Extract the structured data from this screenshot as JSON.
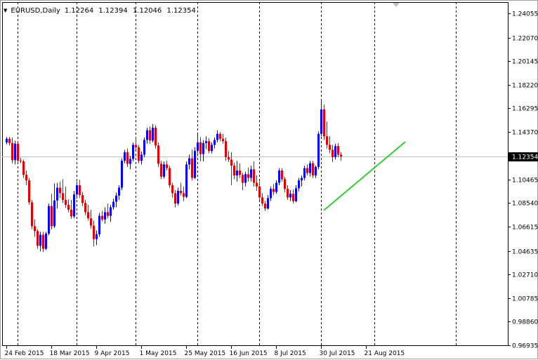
{
  "header": {
    "dropdown_icon": "triangle-down-icon",
    "symbol_timeframe": "EURUSD,Daily",
    "open": "1.12264",
    "high": "1.12394",
    "low": "1.12046",
    "close": "1.12354"
  },
  "colors": {
    "bull": "#0000ff",
    "bear": "#e00000",
    "trendline": "#33cc33",
    "grid": "#000000",
    "current_price_bg": "#000000",
    "current_price_line": "#c0c0c0"
  },
  "chart_data": {
    "type": "candlestick",
    "symbol": "EURUSD",
    "timeframe": "Daily",
    "ylim": [
      0.9692,
      1.2497
    ],
    "price_ticks": [
      "1.24055",
      "1.22070",
      "1.20145",
      "1.18220",
      "1.16295",
      "1.14370",
      "1.12354",
      "1.10465",
      "1.08540",
      "1.06615",
      "1.04635",
      "1.02710",
      "1.00785",
      "0.98860",
      "0.96935"
    ],
    "current_price": "1.12354",
    "date_ticks": [
      {
        "label": "24 Feb 2015",
        "bar": 0
      },
      {
        "label": "18 Mar 2015",
        "bar": 16
      },
      {
        "label": "9 Apr 2015",
        "bar": 32
      },
      {
        "label": "1 May 2015",
        "bar": 48
      },
      {
        "label": "25 May 2015",
        "bar": 64
      },
      {
        "label": "16 Jun 2015",
        "bar": 80
      },
      {
        "label": "8 Jul 2015",
        "bar": 96
      },
      {
        "label": "30 Jul 2015",
        "bar": 112
      },
      {
        "label": "21 Aug 2015",
        "bar": 128
      }
    ],
    "period_separators_bars": [
      4,
      25,
      46,
      68,
      90,
      112,
      131,
      160
    ],
    "trendline": {
      "bar1": 113,
      "price1": 1.0795,
      "bar2": 142,
      "price2": 1.1355
    },
    "candles": [
      [
        1.135,
        1.1395,
        1.1335,
        1.138
      ],
      [
        1.138,
        1.1395,
        1.1325,
        1.1345
      ],
      [
        1.1345,
        1.139,
        1.118,
        1.1205
      ],
      [
        1.1205,
        1.1365,
        1.117,
        1.134
      ],
      [
        1.134,
        1.1355,
        1.118,
        1.12
      ],
      [
        1.12,
        1.1225,
        1.118,
        1.1195
      ],
      [
        1.1195,
        1.121,
        1.106,
        1.1085
      ],
      [
        1.1085,
        1.112,
        1.1,
        1.104
      ],
      [
        1.104,
        1.106,
        1.084,
        1.086
      ],
      [
        1.086,
        1.088,
        1.064,
        1.0665
      ],
      [
        1.0665,
        1.072,
        1.058,
        1.0625
      ],
      [
        1.0625,
        1.064,
        1.048,
        1.0505
      ],
      [
        1.0505,
        1.062,
        1.046,
        1.0595
      ],
      [
        1.0595,
        1.062,
        1.0455,
        1.048
      ],
      [
        1.048,
        1.062,
        1.047,
        1.0605
      ],
      [
        1.0605,
        1.085,
        1.059,
        1.083
      ],
      [
        1.083,
        1.093,
        1.064,
        1.0665
      ],
      [
        1.0665,
        1.1015,
        1.065,
        1.0875
      ],
      [
        1.0875,
        1.102,
        1.081,
        1.098
      ],
      [
        1.098,
        1.103,
        1.0895,
        1.0935
      ],
      [
        1.0935,
        1.105,
        1.0855,
        1.088
      ],
      [
        1.088,
        1.099,
        1.0815,
        1.084
      ],
      [
        1.084,
        1.0885,
        1.078,
        1.08
      ],
      [
        1.08,
        1.088,
        1.0725,
        1.0745
      ],
      [
        1.0745,
        1.0955,
        1.073,
        1.0925
      ],
      [
        1.0925,
        1.103,
        1.089,
        1.1
      ],
      [
        1.1,
        1.1045,
        1.0895,
        1.092
      ],
      [
        1.092,
        1.0945,
        1.083,
        1.0855
      ],
      [
        1.0855,
        1.088,
        1.0755,
        1.078
      ],
      [
        1.078,
        1.084,
        1.071,
        1.073
      ],
      [
        1.073,
        1.08,
        1.0645,
        1.067
      ],
      [
        1.067,
        1.071,
        1.05,
        1.056
      ],
      [
        1.056,
        1.063,
        1.051,
        1.06
      ],
      [
        1.06,
        1.0775,
        1.058,
        1.075
      ],
      [
        1.075,
        1.079,
        1.0705,
        1.072
      ],
      [
        1.072,
        1.082,
        1.0685,
        1.078
      ],
      [
        1.078,
        1.085,
        1.073,
        1.075
      ],
      [
        1.075,
        1.084,
        1.07,
        1.082
      ],
      [
        1.082,
        1.089,
        1.08,
        1.0865
      ],
      [
        1.0865,
        1.094,
        1.082,
        1.0915
      ],
      [
        1.0915,
        1.1,
        1.088,
        1.098
      ],
      [
        1.098,
        1.122,
        1.096,
        1.12
      ],
      [
        1.12,
        1.129,
        1.118,
        1.127
      ],
      [
        1.127,
        1.13,
        1.115,
        1.1175
      ],
      [
        1.1175,
        1.124,
        1.113,
        1.1215
      ],
      [
        1.1215,
        1.135,
        1.1195,
        1.133
      ],
      [
        1.133,
        1.139,
        1.129,
        1.131
      ],
      [
        1.131,
        1.133,
        1.118,
        1.12
      ],
      [
        1.12,
        1.1275,
        1.117,
        1.125
      ],
      [
        1.125,
        1.139,
        1.123,
        1.137
      ],
      [
        1.137,
        1.147,
        1.134,
        1.145
      ],
      [
        1.145,
        1.148,
        1.134,
        1.1365
      ],
      [
        1.1365,
        1.15,
        1.135,
        1.147
      ],
      [
        1.147,
        1.149,
        1.13,
        1.1325
      ],
      [
        1.1325,
        1.135,
        1.115,
        1.1175
      ],
      [
        1.1175,
        1.12,
        1.105,
        1.107
      ],
      [
        1.107,
        1.1195,
        1.1055,
        1.117
      ],
      [
        1.117,
        1.12,
        1.112,
        1.114
      ],
      [
        1.114,
        1.116,
        1.098,
        1.1
      ],
      [
        1.1,
        1.102,
        1.09,
        1.0935
      ],
      [
        1.0935,
        1.096,
        1.082,
        1.085
      ],
      [
        1.085,
        1.098,
        1.0835,
        1.0955
      ],
      [
        1.0955,
        1.102,
        1.0915,
        1.0935
      ],
      [
        1.0935,
        1.099,
        1.087,
        1.0905
      ],
      [
        1.0905,
        1.1195,
        1.0895,
        1.117
      ],
      [
        1.117,
        1.125,
        1.113,
        1.122
      ],
      [
        1.122,
        1.129,
        1.104,
        1.106
      ],
      [
        1.106,
        1.131,
        1.105,
        1.128
      ],
      [
        1.128,
        1.142,
        1.126,
        1.135
      ],
      [
        1.135,
        1.1395,
        1.1195,
        1.1255
      ],
      [
        1.1255,
        1.137,
        1.1195,
        1.1345
      ],
      [
        1.1345,
        1.14,
        1.1295,
        1.136
      ],
      [
        1.136,
        1.1385,
        1.126,
        1.128
      ],
      [
        1.128,
        1.135,
        1.126,
        1.133
      ],
      [
        1.133,
        1.139,
        1.13,
        1.137
      ],
      [
        1.137,
        1.145,
        1.135,
        1.142
      ],
      [
        1.142,
        1.1435,
        1.136,
        1.138
      ],
      [
        1.138,
        1.142,
        1.134,
        1.136
      ],
      [
        1.136,
        1.139,
        1.12,
        1.123
      ],
      [
        1.123,
        1.128,
        1.119,
        1.121
      ],
      [
        1.121,
        1.127,
        1.1,
        1.116
      ],
      [
        1.116,
        1.1185,
        1.105,
        1.108
      ],
      [
        1.108,
        1.12,
        1.103,
        1.112
      ],
      [
        1.112,
        1.118,
        1.106,
        1.1085
      ],
      [
        1.1085,
        1.11,
        1.096,
        1.102
      ],
      [
        1.102,
        1.111,
        1.099,
        1.109
      ],
      [
        1.109,
        1.1145,
        1.103,
        1.106
      ],
      [
        1.106,
        1.116,
        1.103,
        1.113
      ],
      [
        1.113,
        1.1195,
        1.099,
        1.102
      ],
      [
        1.102,
        1.108,
        1.0955,
        1.099
      ],
      [
        1.099,
        1.103,
        1.088,
        1.09
      ],
      [
        1.09,
        1.0935,
        1.083,
        1.085
      ],
      [
        1.085,
        1.087,
        1.079,
        1.081
      ],
      [
        1.081,
        1.092,
        1.08,
        1.0895
      ],
      [
        1.0895,
        1.099,
        1.087,
        1.097
      ],
      [
        1.097,
        1.101,
        1.092,
        1.0945
      ],
      [
        1.0945,
        1.104,
        1.093,
        1.102
      ],
      [
        1.102,
        1.114,
        1.1,
        1.112
      ],
      [
        1.112,
        1.114,
        1.103,
        1.105
      ],
      [
        1.105,
        1.107,
        1.094,
        1.097
      ],
      [
        1.097,
        1.1,
        1.088,
        1.09
      ],
      [
        1.09,
        1.096,
        1.087,
        1.093
      ],
      [
        1.093,
        1.0965,
        1.085,
        1.087
      ],
      [
        1.087,
        1.1,
        1.086,
        1.0975
      ],
      [
        1.0975,
        1.106,
        1.095,
        1.104
      ],
      [
        1.104,
        1.108,
        1.099,
        1.106
      ],
      [
        1.106,
        1.116,
        1.104,
        1.114
      ],
      [
        1.114,
        1.117,
        1.108,
        1.11
      ],
      [
        1.11,
        1.12,
        1.107,
        1.118
      ],
      [
        1.118,
        1.12,
        1.106,
        1.108
      ],
      [
        1.108,
        1.116,
        1.106,
        1.115
      ],
      [
        1.115,
        1.144,
        1.113,
        1.142
      ],
      [
        1.142,
        1.17,
        1.14,
        1.162
      ],
      [
        1.162,
        1.166,
        1.137,
        1.14
      ],
      [
        1.14,
        1.152,
        1.13,
        1.133
      ],
      [
        1.133,
        1.14,
        1.126,
        1.129
      ],
      [
        1.129,
        1.133,
        1.119,
        1.123
      ],
      [
        1.123,
        1.134,
        1.121,
        1.132
      ],
      [
        1.132,
        1.1345,
        1.123,
        1.125
      ],
      [
        1.125,
        1.127,
        1.12,
        1.1235
      ]
    ]
  }
}
